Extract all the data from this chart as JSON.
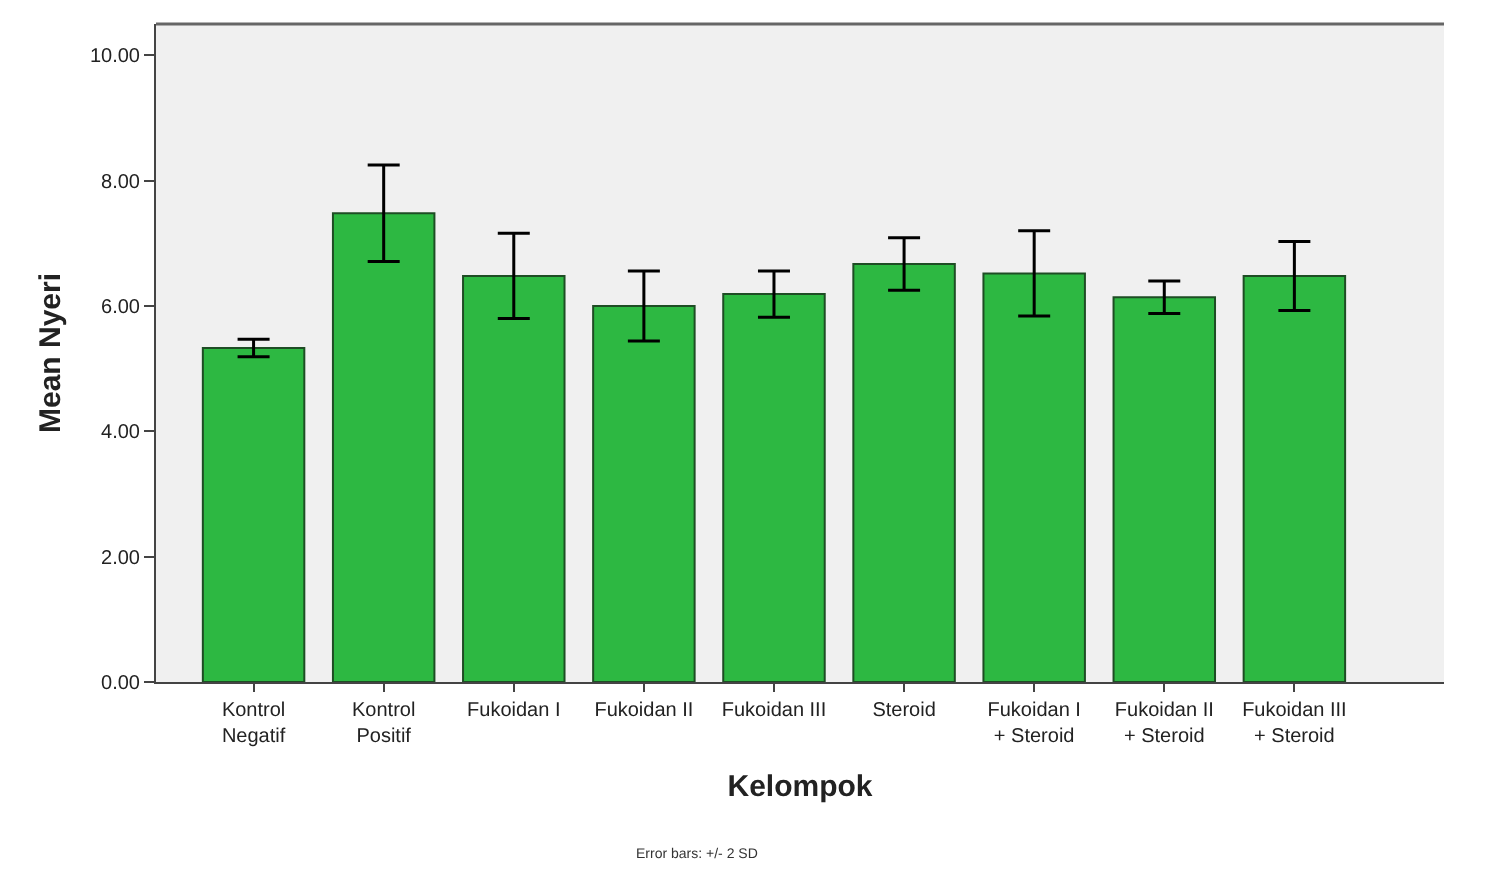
{
  "chart_data": {
    "type": "bar",
    "xlabel": "Kelompok",
    "ylabel": "Mean Nyeri",
    "categories": [
      "Kontrol\nNegatif",
      "Kontrol\nPositif",
      "Fukoidan I",
      "Fukoidan II",
      "Fukoidan III",
      "Steroid",
      "Fukoidan I\n+ Steroid",
      "Fukoidan II\n+ Steroid",
      "Fukoidan III\n+ Steroid"
    ],
    "values": [
      5.33,
      7.48,
      6.48,
      6.0,
      6.19,
      6.67,
      6.52,
      6.14,
      6.48
    ],
    "errors": [
      0.14,
      0.77,
      0.68,
      0.56,
      0.37,
      0.42,
      0.68,
      0.26,
      0.55
    ],
    "color": "#2db842",
    "ylim": [
      0,
      10.5
    ],
    "yticks": [
      {
        "value": 0,
        "label": "0.00"
      },
      {
        "value": 2,
        "label": "2.00"
      },
      {
        "value": 4,
        "label": "4.00"
      },
      {
        "value": 6,
        "label": "6.00"
      },
      {
        "value": 8,
        "label": "8.00"
      },
      {
        "value": 10,
        "label": "10.00"
      }
    ],
    "grid": false,
    "annotations": [
      "Error bars: +/- 2 SD"
    ]
  }
}
